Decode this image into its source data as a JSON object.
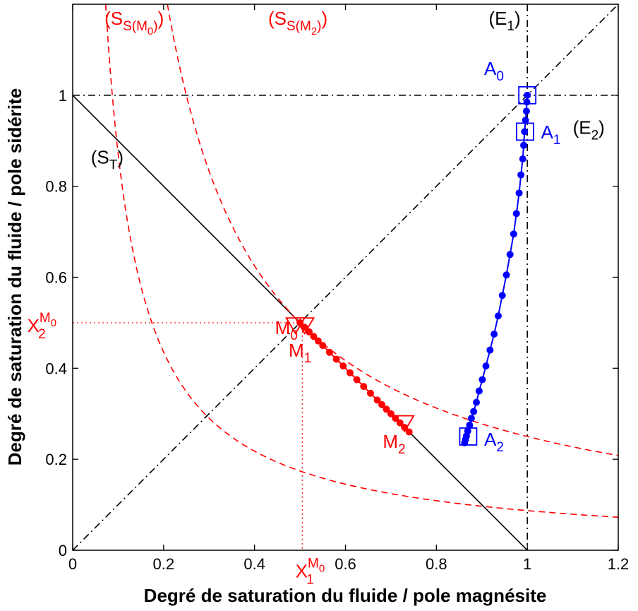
{
  "chart_data": {
    "type": "line",
    "xlabel": "Degré de saturation du fluide / pole magnésite",
    "ylabel": "Degré de saturation du fluide / pole sidérite",
    "xlim": [
      0,
      1.2
    ],
    "ylim": [
      0,
      1.2
    ],
    "x_ticks": [
      "0",
      "0.2",
      "0.4",
      "0.6",
      "0.8",
      "1",
      "1.2"
    ],
    "y_ticks": [
      "0",
      "0.2",
      "0.4",
      "0.6",
      "0.8",
      "1"
    ],
    "colors": {
      "red": "#ff0000",
      "blue": "#0000ff",
      "black": "#000000"
    },
    "reference_lines": [
      {
        "name": "S_T",
        "kind": "line",
        "points": [
          [
            0,
            1
          ],
          [
            1,
            0
          ]
        ],
        "color": "#000000",
        "style": "solid"
      },
      {
        "name": "diagonal",
        "kind": "line",
        "points": [
          [
            0,
            0
          ],
          [
            1.2,
            1.2
          ]
        ],
        "color": "#000000",
        "style": "dashdot"
      },
      {
        "name": "E_1",
        "kind": "vertical",
        "x": 1,
        "color": "#000000",
        "style": "dashdot"
      },
      {
        "name": "E_2",
        "kind": "horizontal",
        "y": 1,
        "color": "#000000",
        "style": "dashdot"
      }
    ],
    "hyperbolas": [
      {
        "name": "S_S(M_0)",
        "product": 0.25,
        "color": "#ff0000",
        "style": "dashed"
      },
      {
        "name": "S_S(M_2)",
        "product": 0.0871,
        "color": "#ff0000",
        "style": "dashed"
      }
    ],
    "guides": {
      "x": 0.505,
      "y": 0.5,
      "color": "#ff0000",
      "style": "dotted"
    },
    "series": [
      {
        "color": "#ff0000",
        "marker": "dot",
        "x": [
          0.5,
          0.51,
          0.52,
          0.53,
          0.54,
          0.55,
          0.565,
          0.58,
          0.595,
          0.61,
          0.625,
          0.64,
          0.655,
          0.67,
          0.68,
          0.69,
          0.7,
          0.71,
          0.72,
          0.73,
          0.74
        ],
        "y": [
          0.5,
          0.49,
          0.48,
          0.47,
          0.46,
          0.45,
          0.435,
          0.42,
          0.405,
          0.39,
          0.375,
          0.36,
          0.345,
          0.33,
          0.32,
          0.31,
          0.3,
          0.29,
          0.28,
          0.27,
          0.26
        ]
      },
      {
        "color": "#0000ff",
        "marker": "dot",
        "x": [
          1.0,
          0.999,
          0.998,
          0.996,
          0.994,
          0.992,
          0.99,
          0.986,
          0.982,
          0.976,
          0.97,
          0.962,
          0.954,
          0.945,
          0.936,
          0.927,
          0.918,
          0.909,
          0.901,
          0.894,
          0.888,
          0.882,
          0.877,
          0.873,
          0.869,
          0.866,
          0.864,
          0.862
        ],
        "y": [
          1.0,
          0.985,
          0.965,
          0.945,
          0.92,
          0.89,
          0.86,
          0.825,
          0.785,
          0.74,
          0.695,
          0.65,
          0.605,
          0.56,
          0.515,
          0.475,
          0.44,
          0.405,
          0.375,
          0.35,
          0.325,
          0.305,
          0.29,
          0.275,
          0.262,
          0.251,
          0.243,
          0.236
        ]
      }
    ],
    "markers": [
      {
        "shape": "square",
        "x": 1.0,
        "y": 1.0,
        "color": "#0000ff"
      },
      {
        "shape": "square",
        "x": 0.995,
        "y": 0.92,
        "color": "#0000ff"
      },
      {
        "shape": "square",
        "x": 0.87,
        "y": 0.25,
        "color": "#0000ff"
      },
      {
        "shape": "triangle-down",
        "x": 0.49,
        "y": 0.495,
        "color": "#ff0000"
      },
      {
        "shape": "triangle-down",
        "x": 0.51,
        "y": 0.495,
        "color": "#ff0000"
      },
      {
        "shape": "triangle-down",
        "x": 0.73,
        "y": 0.28,
        "color": "#ff0000"
      }
    ],
    "annotations": [
      {
        "base": "(S",
        "sub": "S(M",
        "subsub": "0",
        "tail": ")",
        "close": ")",
        "x": 0.07,
        "y": 1.155,
        "color": "#ff0000"
      },
      {
        "base": "(S",
        "sub": "S(M",
        "subsub": "2",
        "tail": ")",
        "close": ")",
        "x": 0.43,
        "y": 1.155,
        "color": "#ff0000"
      },
      {
        "base": "(E",
        "sub": "1",
        "close": ")",
        "x": 0.915,
        "y": 1.155,
        "color": "#000000"
      },
      {
        "base": "(E",
        "sub": "2",
        "close": ")",
        "x": 1.1,
        "y": 0.915,
        "color": "#000000"
      },
      {
        "base": "(S",
        "sub": "T",
        "close": ")",
        "x": 0.04,
        "y": 0.85,
        "color": "#000000"
      },
      {
        "base": "A",
        "sub": "0",
        "x": 0.905,
        "y": 1.045,
        "color": "#0000ff"
      },
      {
        "base": "A",
        "sub": "1",
        "x": 1.03,
        "y": 0.905,
        "color": "#0000ff"
      },
      {
        "base": "A",
        "sub": "2",
        "x": 0.905,
        "y": 0.23,
        "color": "#0000ff"
      },
      {
        "base": "M",
        "sub": "0",
        "x": 0.445,
        "y": 0.475,
        "color": "#ff0000"
      },
      {
        "base": "M",
        "sub": "1",
        "x": 0.475,
        "y": 0.425,
        "color": "#ff0000"
      },
      {
        "base": "M",
        "sub": "2",
        "x": 0.682,
        "y": 0.225,
        "color": "#ff0000"
      },
      {
        "base": "X",
        "sub": "2",
        "sup": "M",
        "supsub": "0",
        "x": -0.1,
        "y": 0.48,
        "color": "#ff0000"
      },
      {
        "base": "X",
        "sub": "1",
        "sup": "M",
        "supsub": "0",
        "x": 0.49,
        "y": -0.06,
        "color": "#ff0000"
      }
    ]
  }
}
